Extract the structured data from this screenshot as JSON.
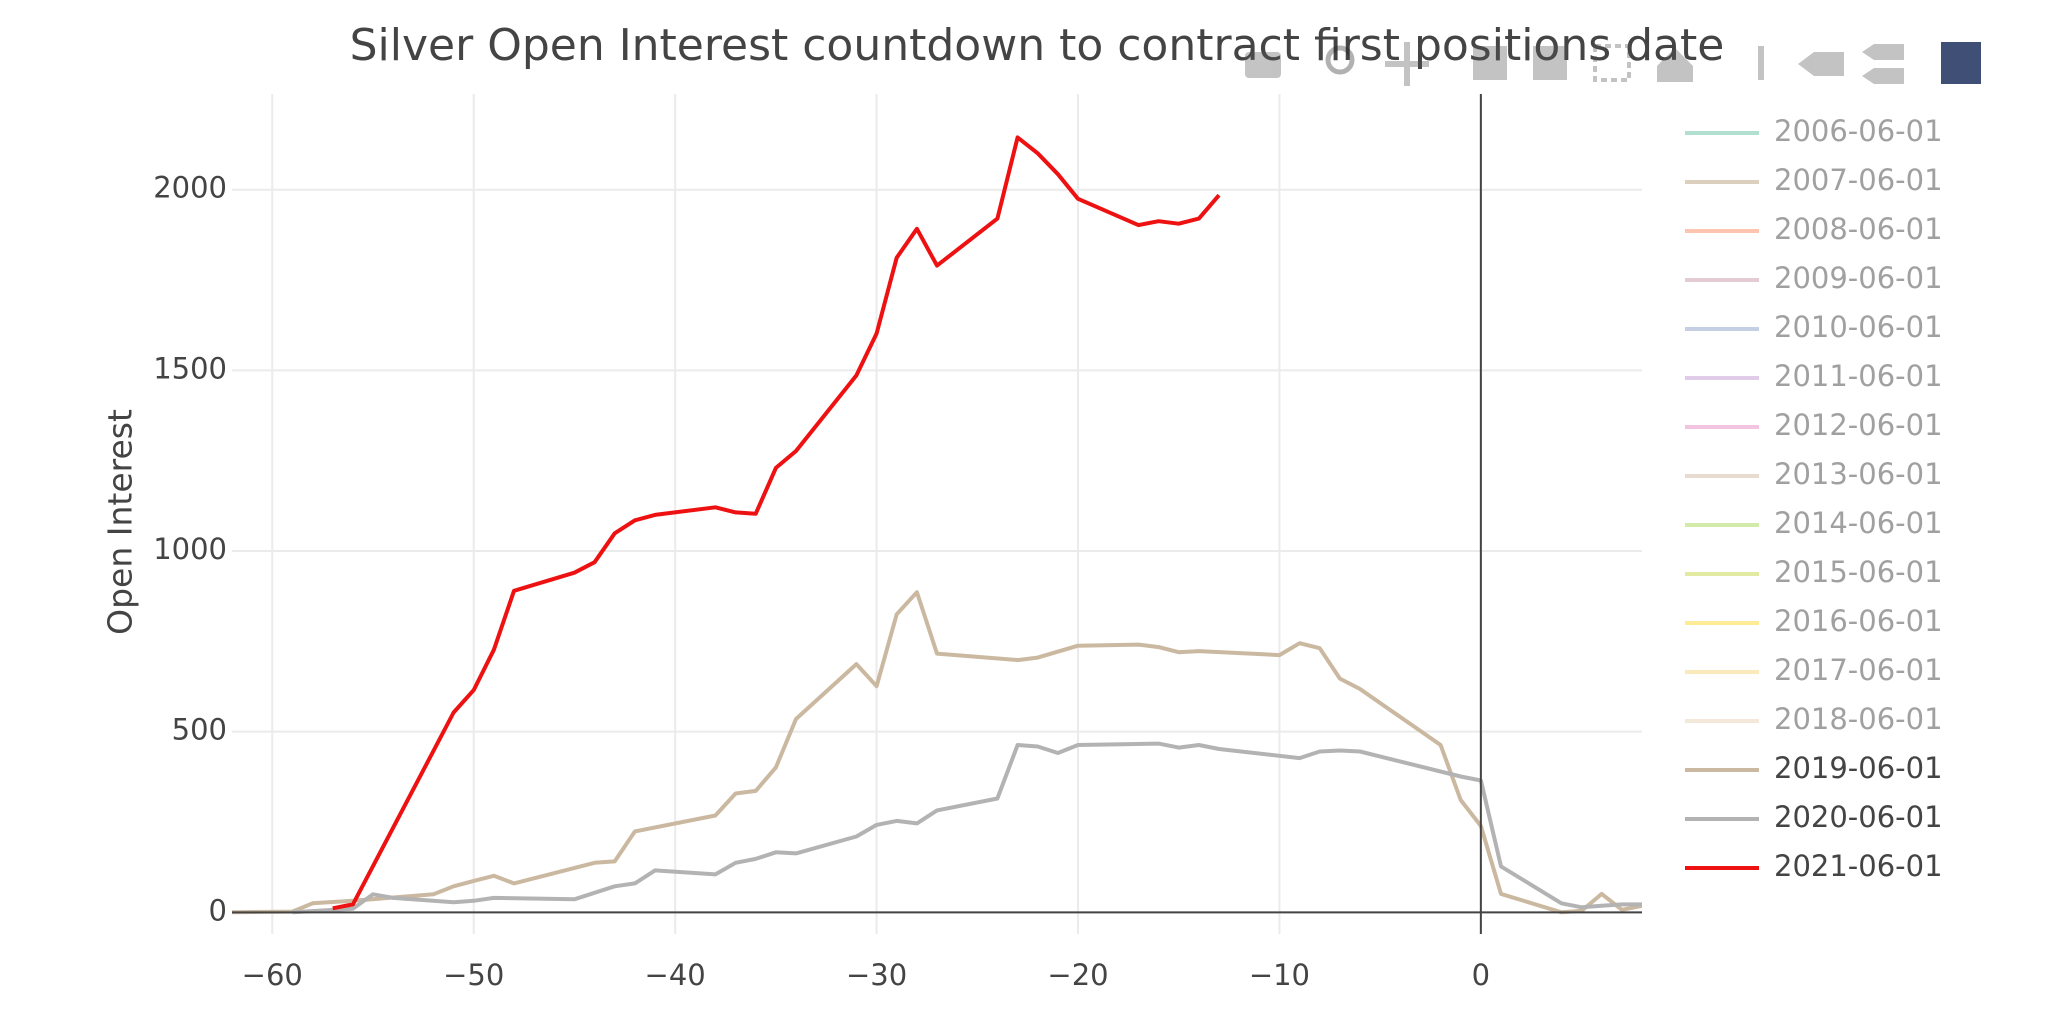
{
  "chart_data": {
    "type": "line",
    "title": "Silver Open Interest countdown to contract first positions date",
    "y_label": "Open Interest",
    "xlim": [
      -62,
      8
    ],
    "ylim": [
      -60,
      2265
    ],
    "xticks": [
      {
        "value": -60,
        "label": "−60"
      },
      {
        "value": -50,
        "label": "−50"
      },
      {
        "value": -40,
        "label": "−40"
      },
      {
        "value": -30,
        "label": "−30"
      },
      {
        "value": -20,
        "label": "−20"
      },
      {
        "value": -10,
        "label": "−10"
      },
      0
    ],
    "yticks": [
      0,
      500,
      1000,
      1500,
      2000
    ],
    "grid": true,
    "zeroline": true,
    "legend": "right",
    "series": [
      {
        "name": "2006-06-01",
        "color": "#66c2a5",
        "visible": false
      },
      {
        "name": "2007-06-01",
        "color": "#b8a07e",
        "visible": false
      },
      {
        "name": "2008-06-01",
        "color": "#fc8d62",
        "visible": false
      },
      {
        "name": "2009-06-01",
        "color": "#c99ba6",
        "visible": false
      },
      {
        "name": "2010-06-01",
        "color": "#8da0cb",
        "visible": false
      },
      {
        "name": "2011-06-01",
        "color": "#c39bd3",
        "visible": false
      },
      {
        "name": "2012-06-01",
        "color": "#e78ac3",
        "visible": false
      },
      {
        "name": "2013-06-01",
        "color": "#d2b8a0",
        "visible": false
      },
      {
        "name": "2014-06-01",
        "color": "#a6d854",
        "visible": false
      },
      {
        "name": "2015-06-01",
        "color": "#c8d84a",
        "visible": false
      },
      {
        "name": "2016-06-01",
        "color": "#ffd92f",
        "visible": false
      },
      {
        "name": "2017-06-01",
        "color": "#f5d77a",
        "visible": false
      },
      {
        "name": "2018-06-01",
        "color": "#ebd3b8",
        "visible": false
      },
      {
        "name": "2019-06-01",
        "color": "#cbb8a0",
        "visible": true,
        "x": [
          -62,
          -59,
          -58,
          -56,
          -52,
          -51,
          -50,
          -49,
          -48,
          -44,
          -43,
          -42,
          -38,
          -37,
          -36,
          -35,
          -34,
          -31,
          -30,
          -29,
          -28,
          -27,
          -23,
          -22,
          -20,
          -17,
          -16,
          -15,
          -14,
          -10,
          -9,
          -8,
          -7,
          -6,
          -2,
          -1,
          0,
          1,
          4,
          5,
          6,
          7,
          8
        ],
        "values": [
          0,
          2,
          25,
          32,
          50,
          72,
          87,
          101,
          80,
          137,
          141,
          224,
          268,
          329,
          336,
          401,
          535,
          687,
          626,
          825,
          886,
          716,
          698,
          705,
          738,
          741,
          734,
          720,
          723,
          712,
          745,
          731,
          647,
          618,
          463,
          311,
          239,
          51,
          0,
          4,
          51,
          7,
          18
        ]
      },
      {
        "name": "2020-06-01",
        "color": "#b3b3b3",
        "visible": true,
        "x": [
          -59,
          -56,
          -55,
          -54,
          -51,
          -50,
          -49,
          -45,
          -43,
          -42,
          -41,
          -38,
          -37,
          -36,
          -35,
          -34,
          -31,
          -30,
          -29,
          -28,
          -27,
          -24,
          -23,
          -22,
          -21,
          -20,
          -16,
          -15,
          -14,
          -13,
          -9,
          -8,
          -7,
          -6,
          -1,
          0,
          1,
          4,
          5,
          6,
          7,
          8
        ],
        "values": [
          0,
          10,
          50,
          40,
          28,
          32,
          40,
          36,
          72,
          80,
          116,
          105,
          137,
          148,
          166,
          163,
          210,
          242,
          253,
          246,
          282,
          315,
          463,
          459,
          441,
          463,
          467,
          456,
          463,
          452,
          427,
          445,
          448,
          445,
          376,
          365,
          127,
          25,
          14,
          18,
          22,
          22
        ]
      },
      {
        "name": "2021-06-01",
        "color": "#ee1111",
        "visible": true,
        "x": [
          -57,
          -56,
          -51,
          -50,
          -49,
          -48,
          -45,
          -44,
          -43,
          -42,
          -41,
          -38,
          -37,
          -36,
          -35,
          -34,
          -31,
          -30,
          -29,
          -28,
          -27,
          -24,
          -23,
          -22,
          -21,
          -20,
          -17,
          -16,
          -15,
          -14,
          -13
        ],
        "values": [
          11,
          22,
          553,
          615,
          727,
          890,
          940,
          969,
          1049,
          1085,
          1100,
          1121,
          1107,
          1103,
          1230,
          1277,
          1486,
          1602,
          1812,
          1892,
          1790,
          1920,
          2145,
          2101,
          2043,
          1975,
          1902,
          1913,
          1906,
          1920,
          1985
        ]
      }
    ]
  }
}
